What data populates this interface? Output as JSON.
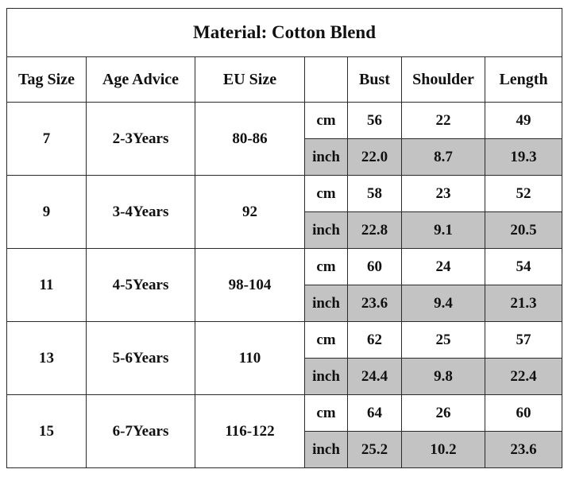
{
  "title": "Material: Cotton Blend",
  "header": {
    "tag": "Tag Size",
    "age": "Age Advice",
    "eu": "EU Size",
    "measures": [
      "Bust",
      "Shoulder",
      "Length"
    ]
  },
  "rows": [
    {
      "tag": "7",
      "age": "2-3Years",
      "eu": "80-86",
      "cm": {
        "unit": "cm",
        "values": [
          "56",
          "22",
          "49"
        ]
      },
      "inch": {
        "unit": "inch",
        "values": [
          "22.0",
          "8.7",
          "19.3"
        ]
      }
    },
    {
      "tag": "9",
      "age": "3-4Years",
      "eu": "92",
      "cm": {
        "unit": "cm",
        "values": [
          "58",
          "23",
          "52"
        ]
      },
      "inch": {
        "unit": "inch",
        "values": [
          "22.8",
          "9.1",
          "20.5"
        ]
      }
    },
    {
      "tag": "11",
      "age": "4-5Years",
      "eu": "98-104",
      "cm": {
        "unit": "cm",
        "values": [
          "60",
          "24",
          "54"
        ]
      },
      "inch": {
        "unit": "inch",
        "values": [
          "23.6",
          "9.4",
          "21.3"
        ]
      }
    },
    {
      "tag": "13",
      "age": "5-6Years",
      "eu": "110",
      "cm": {
        "unit": "cm",
        "values": [
          "62",
          "25",
          "57"
        ]
      },
      "inch": {
        "unit": "inch",
        "values": [
          "24.4",
          "9.8",
          "22.4"
        ]
      }
    },
    {
      "tag": "15",
      "age": "6-7Years",
      "eu": "116-122",
      "cm": {
        "unit": "cm",
        "values": [
          "64",
          "26",
          "60"
        ]
      },
      "inch": {
        "unit": "inch",
        "values": [
          "25.2",
          "10.2",
          "23.6"
        ]
      }
    }
  ]
}
